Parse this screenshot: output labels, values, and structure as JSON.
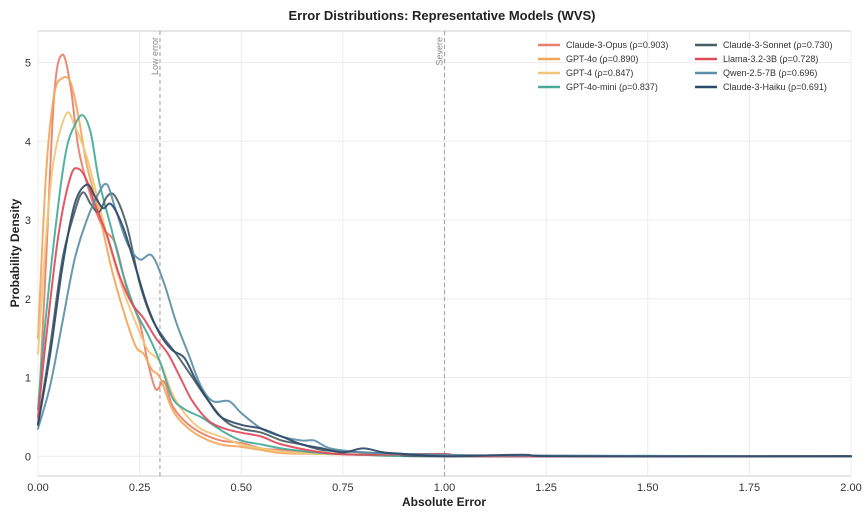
{
  "chart_data": {
    "type": "line",
    "title": "Error Distributions: Representative Models (WVS)",
    "xlabel": "Absolute Error",
    "ylabel": "Probability Density",
    "xlim": [
      0,
      2.0
    ],
    "ylim": [
      -0.25,
      5.4
    ],
    "xticks": [
      "0.00",
      "0.25",
      "0.50",
      "0.75",
      "1.00",
      "1.25",
      "1.50",
      "1.75",
      "2.00"
    ],
    "yticks": [
      "0",
      "1",
      "2",
      "3",
      "4",
      "5"
    ],
    "grid": true,
    "legend_position": "top-right",
    "annotations": [
      {
        "x": 0.3,
        "text": "Low error",
        "color": "#aaaaaa"
      },
      {
        "x": 1.0,
        "text": "Severe",
        "color": "#aaaaaa"
      }
    ],
    "series": [
      {
        "name": "Claude-3-Opus (ρ=0.903)",
        "color": "#e8806a",
        "points": [
          [
            0,
            0.4
          ],
          [
            0.02,
            2.5
          ],
          [
            0.04,
            4.6
          ],
          [
            0.06,
            5.1
          ],
          [
            0.08,
            4.7
          ],
          [
            0.1,
            3.9
          ],
          [
            0.13,
            3.3
          ],
          [
            0.16,
            2.9
          ],
          [
            0.19,
            2.7
          ],
          [
            0.22,
            2.1
          ],
          [
            0.25,
            1.7
          ],
          [
            0.27,
            1.2
          ],
          [
            0.29,
            0.85
          ],
          [
            0.31,
            0.95
          ],
          [
            0.33,
            0.65
          ],
          [
            0.36,
            0.45
          ],
          [
            0.4,
            0.3
          ],
          [
            0.45,
            0.2
          ],
          [
            0.5,
            0.17
          ],
          [
            0.55,
            0.1
          ],
          [
            0.6,
            0.08
          ],
          [
            0.7,
            0.04
          ],
          [
            0.8,
            0.02
          ],
          [
            1.0,
            0.02
          ],
          [
            1.2,
            0.005
          ],
          [
            2.0,
            0.0
          ]
        ]
      },
      {
        "name": "GPT-4o (ρ=0.890)",
        "color": "#f2a65a",
        "points": [
          [
            0,
            1.5
          ],
          [
            0.02,
            3.6
          ],
          [
            0.04,
            4.6
          ],
          [
            0.06,
            4.8
          ],
          [
            0.08,
            4.75
          ],
          [
            0.1,
            4.3
          ],
          [
            0.12,
            3.7
          ],
          [
            0.15,
            3.1
          ],
          [
            0.18,
            2.4
          ],
          [
            0.21,
            1.85
          ],
          [
            0.24,
            1.4
          ],
          [
            0.26,
            1.3
          ],
          [
            0.28,
            1.1
          ],
          [
            0.3,
            1.0
          ],
          [
            0.33,
            0.6
          ],
          [
            0.36,
            0.4
          ],
          [
            0.4,
            0.25
          ],
          [
            0.45,
            0.15
          ],
          [
            0.5,
            0.12
          ],
          [
            0.55,
            0.08
          ],
          [
            0.6,
            0.04
          ],
          [
            0.7,
            0.03
          ],
          [
            0.8,
            0.02
          ],
          [
            1.0,
            0.0
          ],
          [
            2.0,
            0.0
          ]
        ]
      },
      {
        "name": "GPT-4 (ρ=0.847)",
        "color": "#f0c77a",
        "points": [
          [
            0,
            1.3
          ],
          [
            0.02,
            2.8
          ],
          [
            0.04,
            3.8
          ],
          [
            0.07,
            4.35
          ],
          [
            0.09,
            4.2
          ],
          [
            0.12,
            3.8
          ],
          [
            0.15,
            3.2
          ],
          [
            0.18,
            2.6
          ],
          [
            0.21,
            2.1
          ],
          [
            0.24,
            1.7
          ],
          [
            0.27,
            1.35
          ],
          [
            0.3,
            1.2
          ],
          [
            0.33,
            0.8
          ],
          [
            0.36,
            0.55
          ],
          [
            0.4,
            0.35
          ],
          [
            0.45,
            0.25
          ],
          [
            0.5,
            0.15
          ],
          [
            0.55,
            0.1
          ],
          [
            0.6,
            0.06
          ],
          [
            0.7,
            0.03
          ],
          [
            0.8,
            0.02
          ],
          [
            1.0,
            0.0
          ],
          [
            2.0,
            0.0
          ]
        ]
      },
      {
        "name": "GPT-4o-mini (ρ=0.837)",
        "color": "#45aa98",
        "points": [
          [
            0,
            0.6
          ],
          [
            0.02,
            1.8
          ],
          [
            0.05,
            3.2
          ],
          [
            0.07,
            3.9
          ],
          [
            0.09,
            4.2
          ],
          [
            0.11,
            4.33
          ],
          [
            0.13,
            4.1
          ],
          [
            0.15,
            3.5
          ],
          [
            0.18,
            2.9
          ],
          [
            0.21,
            2.3
          ],
          [
            0.24,
            1.85
          ],
          [
            0.27,
            1.55
          ],
          [
            0.3,
            1.2
          ],
          [
            0.33,
            0.75
          ],
          [
            0.36,
            0.6
          ],
          [
            0.4,
            0.5
          ],
          [
            0.43,
            0.4
          ],
          [
            0.46,
            0.3
          ],
          [
            0.5,
            0.2
          ],
          [
            0.55,
            0.15
          ],
          [
            0.6,
            0.1
          ],
          [
            0.7,
            0.04
          ],
          [
            0.8,
            0.02
          ],
          [
            1.0,
            0.0
          ],
          [
            2.0,
            0.0
          ]
        ]
      },
      {
        "name": "Claude-3-Sonnet (ρ=0.730)",
        "color": "#4a5f63",
        "points": [
          [
            0,
            0.4
          ],
          [
            0.03,
            1.4
          ],
          [
            0.06,
            2.5
          ],
          [
            0.09,
            3.1
          ],
          [
            0.11,
            3.35
          ],
          [
            0.13,
            3.2
          ],
          [
            0.15,
            3.1
          ],
          [
            0.17,
            3.3
          ],
          [
            0.19,
            3.3
          ],
          [
            0.22,
            2.9
          ],
          [
            0.25,
            2.2
          ],
          [
            0.28,
            1.75
          ],
          [
            0.31,
            1.5
          ],
          [
            0.34,
            1.3
          ],
          [
            0.38,
            1.0
          ],
          [
            0.42,
            0.7
          ],
          [
            0.46,
            0.45
          ],
          [
            0.5,
            0.35
          ],
          [
            0.55,
            0.3
          ],
          [
            0.6,
            0.2
          ],
          [
            0.65,
            0.15
          ],
          [
            0.7,
            0.08
          ],
          [
            0.8,
            0.05
          ],
          [
            0.9,
            0.03
          ],
          [
            1.0,
            0.0
          ],
          [
            2.0,
            0.0
          ]
        ]
      },
      {
        "name": "Llama-3.2-3B (ρ=0.728)",
        "color": "#e04a5a",
        "points": [
          [
            0,
            0.5
          ],
          [
            0.02,
            1.5
          ],
          [
            0.05,
            2.8
          ],
          [
            0.08,
            3.55
          ],
          [
            0.1,
            3.65
          ],
          [
            0.12,
            3.5
          ],
          [
            0.14,
            3.2
          ],
          [
            0.17,
            2.8
          ],
          [
            0.2,
            2.3
          ],
          [
            0.23,
            1.95
          ],
          [
            0.26,
            1.75
          ],
          [
            0.29,
            1.5
          ],
          [
            0.32,
            1.3
          ],
          [
            0.35,
            1.0
          ],
          [
            0.38,
            0.7
          ],
          [
            0.42,
            0.45
          ],
          [
            0.46,
            0.35
          ],
          [
            0.5,
            0.3
          ],
          [
            0.55,
            0.25
          ],
          [
            0.6,
            0.15
          ],
          [
            0.7,
            0.05
          ],
          [
            0.8,
            0.02
          ],
          [
            1.0,
            0.03
          ],
          [
            1.1,
            0.0
          ],
          [
            2.0,
            0.0
          ]
        ]
      },
      {
        "name": "Qwen-2.5-7B (ρ=0.696)",
        "color": "#5b8ea8",
        "points": [
          [
            0,
            0.35
          ],
          [
            0.03,
            0.9
          ],
          [
            0.06,
            1.7
          ],
          [
            0.09,
            2.5
          ],
          [
            0.12,
            3.0
          ],
          [
            0.15,
            3.35
          ],
          [
            0.17,
            3.45
          ],
          [
            0.19,
            3.15
          ],
          [
            0.22,
            2.7
          ],
          [
            0.25,
            2.5
          ],
          [
            0.28,
            2.55
          ],
          [
            0.31,
            2.2
          ],
          [
            0.34,
            1.7
          ],
          [
            0.37,
            1.3
          ],
          [
            0.4,
            0.9
          ],
          [
            0.43,
            0.7
          ],
          [
            0.47,
            0.7
          ],
          [
            0.5,
            0.55
          ],
          [
            0.55,
            0.35
          ],
          [
            0.6,
            0.25
          ],
          [
            0.65,
            0.2
          ],
          [
            0.68,
            0.2
          ],
          [
            0.72,
            0.1
          ],
          [
            0.8,
            0.05
          ],
          [
            0.9,
            0.03
          ],
          [
            1.0,
            0.02
          ],
          [
            1.2,
            0.01
          ],
          [
            2.0,
            0.0
          ]
        ]
      },
      {
        "name": "Claude-3-Haiku (ρ=0.691)",
        "color": "#2e4a6a",
        "points": [
          [
            0,
            0.4
          ],
          [
            0.03,
            1.3
          ],
          [
            0.06,
            2.4
          ],
          [
            0.09,
            3.2
          ],
          [
            0.12,
            3.45
          ],
          [
            0.14,
            3.3
          ],
          [
            0.16,
            3.15
          ],
          [
            0.18,
            3.2
          ],
          [
            0.21,
            2.9
          ],
          [
            0.24,
            2.4
          ],
          [
            0.27,
            1.9
          ],
          [
            0.3,
            1.55
          ],
          [
            0.33,
            1.35
          ],
          [
            0.36,
            1.25
          ],
          [
            0.39,
            0.95
          ],
          [
            0.42,
            0.7
          ],
          [
            0.45,
            0.5
          ],
          [
            0.5,
            0.4
          ],
          [
            0.55,
            0.35
          ],
          [
            0.6,
            0.25
          ],
          [
            0.65,
            0.15
          ],
          [
            0.7,
            0.1
          ],
          [
            0.75,
            0.05
          ],
          [
            0.8,
            0.1
          ],
          [
            0.85,
            0.05
          ],
          [
            0.9,
            0.03
          ],
          [
            1.0,
            0.0
          ],
          [
            1.19,
            0.02
          ],
          [
            1.3,
            0.0
          ],
          [
            2.0,
            0.0
          ]
        ]
      }
    ]
  }
}
